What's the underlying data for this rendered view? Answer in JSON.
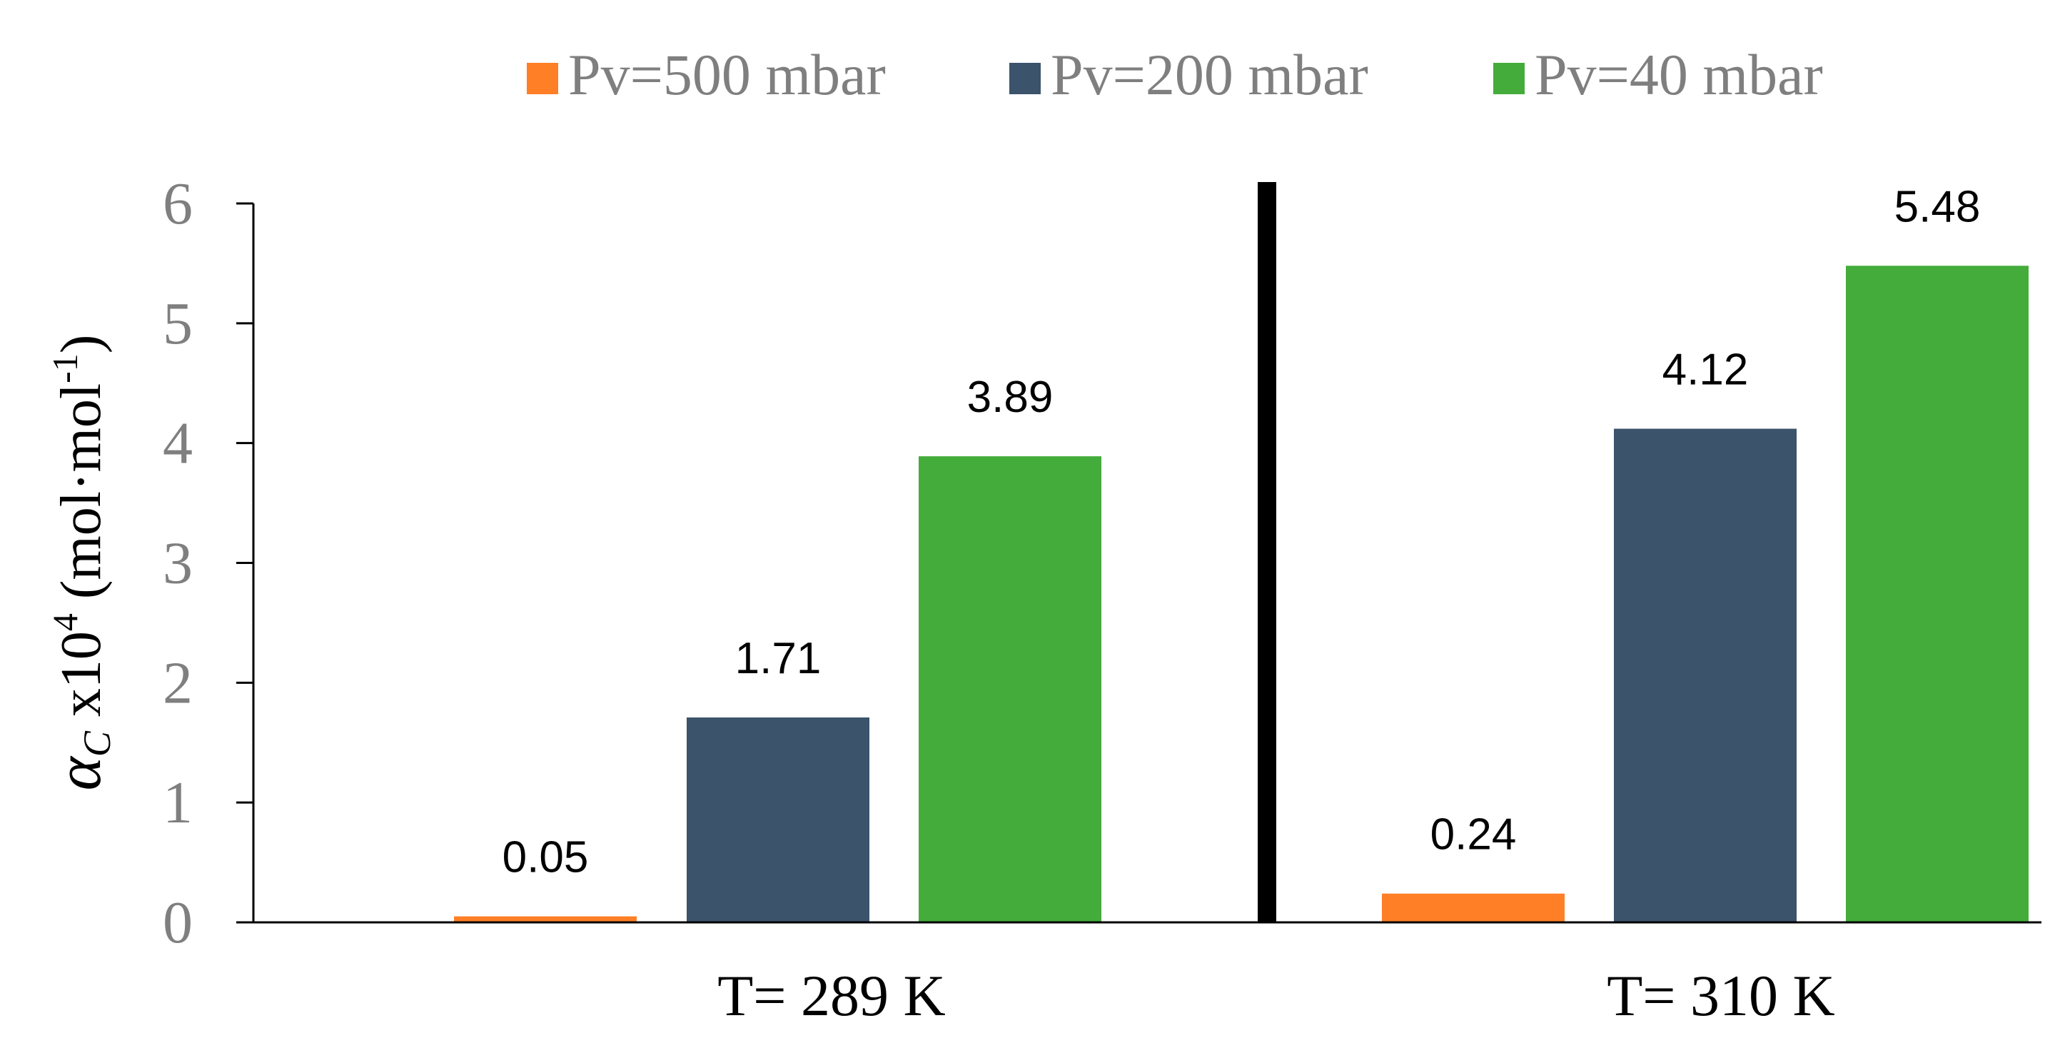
{
  "chart_data": {
    "type": "bar",
    "ylabel": {
      "symbol": "α",
      "subscript": "C",
      "multiplier": " x10",
      "exponent": "4",
      "unit_open": " (mol·mol",
      "unit_exp": "-1",
      "unit_close": ")"
    },
    "ylim": [
      0,
      6
    ],
    "yticks": [
      "0",
      "1",
      "2",
      "3",
      "4",
      "5",
      "6"
    ],
    "categories": [
      "T= 289 K",
      "T= 310 K"
    ],
    "series": [
      {
        "name": "Pv=500 mbar",
        "color": "#FF7F27",
        "values": [
          0.05,
          0.24
        ],
        "labels": [
          "0.05",
          "0.24"
        ]
      },
      {
        "name": "Pv=200 mbar",
        "color": "#3B536B",
        "values": [
          1.71,
          4.12
        ],
        "labels": [
          "1.71",
          "4.12"
        ]
      },
      {
        "name": "Pv=40 mbar",
        "color": "#44AC3B",
        "values": [
          3.89,
          5.48
        ],
        "labels": [
          "3.89",
          "5.48"
        ]
      }
    ],
    "legend_position": "top",
    "grid": false,
    "group_separator": true
  }
}
